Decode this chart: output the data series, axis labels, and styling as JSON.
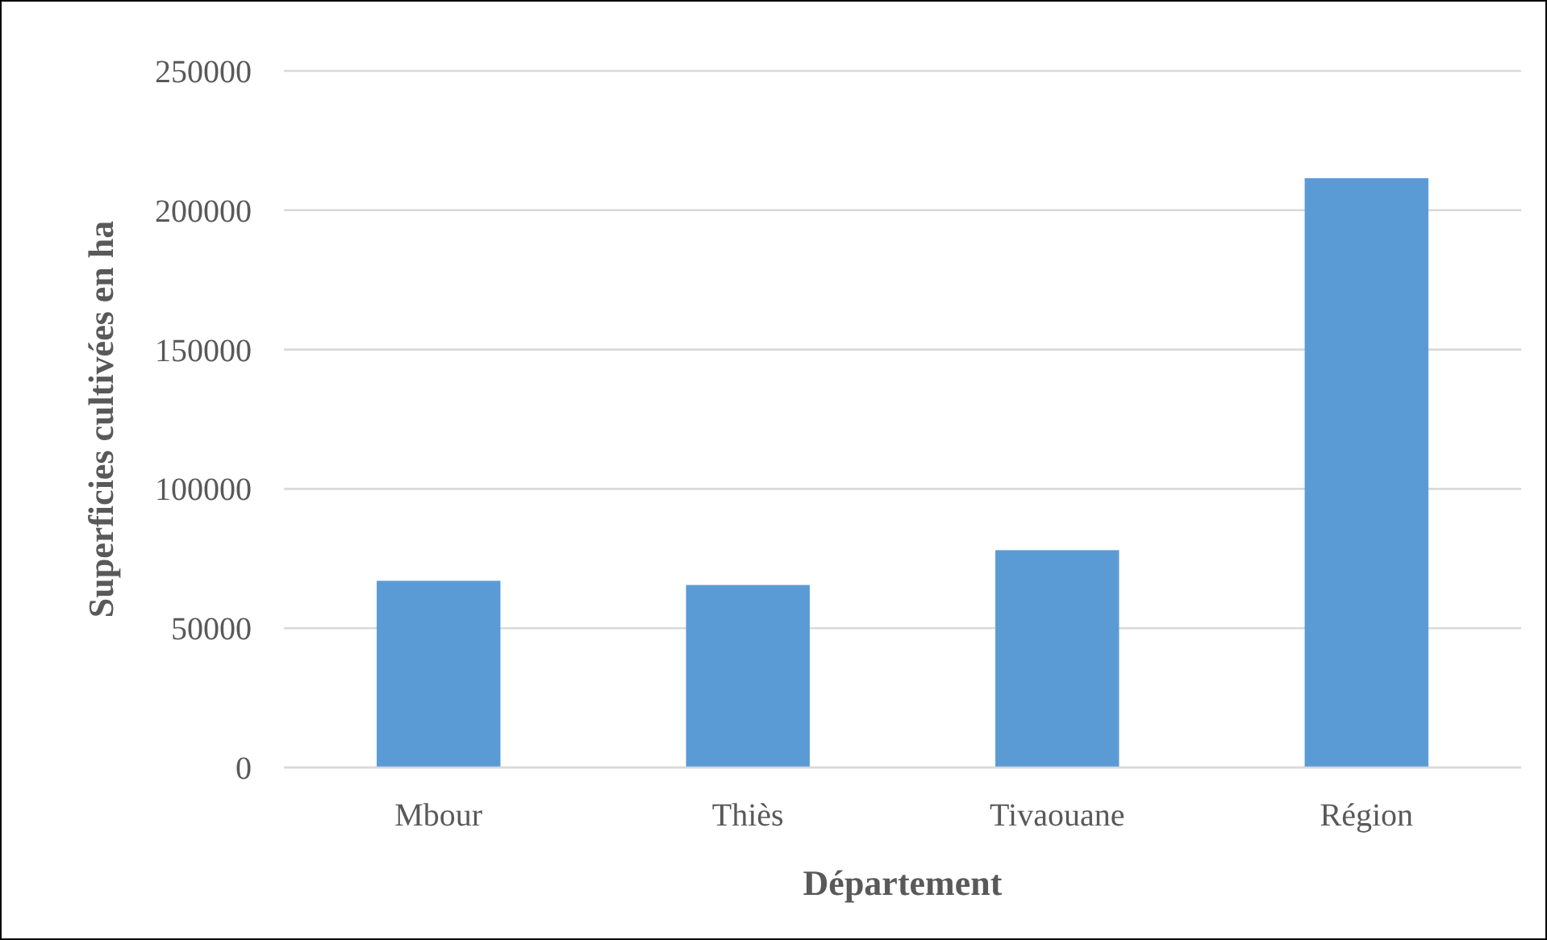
{
  "chart_data": {
    "type": "bar",
    "xlabel": "Département",
    "ylabel": "Superficies cultivées en ha",
    "categories": [
      "Mbour",
      "Thiès",
      "Tivaouane",
      "Région"
    ],
    "values": [
      67000,
      65500,
      78000,
      211500
    ],
    "color": "#5b9bd5",
    "ylim": [
      0,
      250000
    ],
    "yticks": [
      0,
      50000,
      100000,
      150000,
      200000,
      250000
    ],
    "grid": "y"
  }
}
